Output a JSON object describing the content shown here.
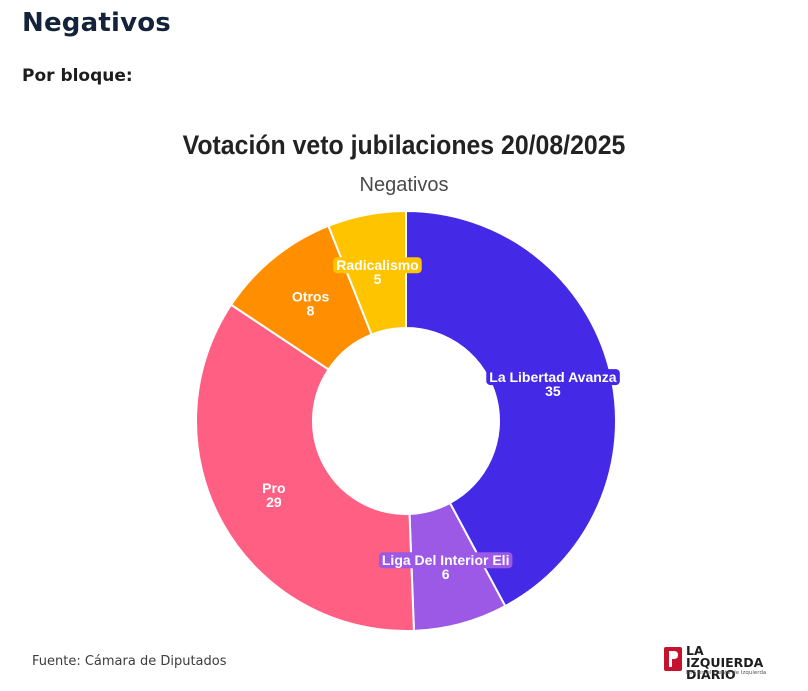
{
  "header": {
    "title": "Negativos",
    "section_label": "Por bloque:"
  },
  "footer": {
    "source": "Fuente: Cámara de Diputados"
  },
  "logo": {
    "name_line1": "LA IZQUIERDA",
    "name_line2": "DIARIO",
    "tagline": "PTS en el Frente de Izquierda"
  },
  "chart_data": {
    "type": "pie",
    "title": "Votación veto jubilaciones 20/08/2025",
    "subtitle": "Negativos",
    "slices": [
      {
        "label": "La Libertad Avanza",
        "value": 35,
        "color": "#4429e6"
      },
      {
        "label": "Liga Del Interior Eli",
        "value": 6,
        "color": "#9b59e6"
      },
      {
        "label": "Pro",
        "value": 29,
        "color": "#ff5f82"
      },
      {
        "label": "Otros",
        "value": 8,
        "color": "#ff8f00"
      },
      {
        "label": "Radicalismo",
        "value": 5,
        "color": "#ffc400"
      }
    ]
  }
}
